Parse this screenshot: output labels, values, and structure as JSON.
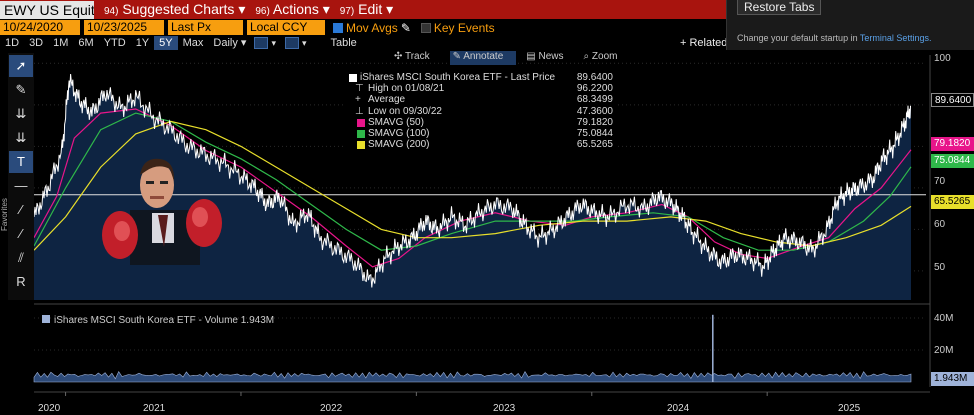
{
  "topbar": {
    "ticker": "EWY US Equity",
    "menus": [
      {
        "num": "94)",
        "label": "Suggested Charts",
        "arrow": "▾"
      },
      {
        "num": "96)",
        "label": "Actions",
        "arrow": "▾"
      },
      {
        "num": "97)",
        "label": "Edit",
        "arrow": "▾"
      }
    ]
  },
  "controls": {
    "start_date": "10/24/2020",
    "end_date": "10/23/2025",
    "field": "Last Px",
    "currency": "Local CCY",
    "mov_avgs": "Mov Avgs",
    "key_events": "Key Events"
  },
  "periods": [
    "1D",
    "3D",
    "1M",
    "6M",
    "YTD",
    "1Y",
    "5Y",
    "Max"
  ],
  "selected_period": "5Y",
  "frequency": "Daily",
  "table_label": "Table",
  "related_label": "+ Related",
  "subtoolbar": [
    "Track",
    "Annotate",
    "News",
    "Zoom"
  ],
  "panel": {
    "button": "Restore Tabs",
    "message": "Change your default startup in ",
    "link": "Terminal Settings."
  },
  "favorites_label": "Favorites",
  "legend": {
    "title": "iShares MSCI South Korea ETF - Last Price",
    "title_value": "89.6400",
    "rows": [
      {
        "name": "High on 01/08/21",
        "value": "96.2200",
        "color": "",
        "icon": "⊤"
      },
      {
        "name": "Average",
        "value": "68.3499",
        "color": "",
        "icon": "+"
      },
      {
        "name": "Low on 09/30/22",
        "value": "47.3600",
        "color": "",
        "icon": "⊥"
      },
      {
        "name": "SMAVG (50)",
        "value": "79.1820",
        "color": "#e8158a",
        "icon": ""
      },
      {
        "name": "SMAVG (100)",
        "value": "75.0844",
        "color": "#2fb84a",
        "icon": ""
      },
      {
        "name": "SMAVG (200)",
        "value": "65.5265",
        "color": "#e8df2b",
        "icon": ""
      }
    ]
  },
  "price_tags": [
    {
      "value": "89.6400",
      "bg": "#000000",
      "fg": "#ffffff",
      "y": 89.64
    },
    {
      "value": "79.1820",
      "bg": "#e8158a",
      "fg": "#ffffff",
      "y": 79.182
    },
    {
      "value": "75.0844",
      "bg": "#2fb84a",
      "fg": "#ffffff",
      "y": 75.0844
    },
    {
      "value": "65.5265",
      "bg": "#e8df2b",
      "fg": "#000000",
      "y": 65.5265
    }
  ],
  "volume": {
    "title": "iShares MSCI South Korea ETF - Volume 1.943M",
    "last": "1.943M",
    "last_value": 1.943
  },
  "chart_data": {
    "type": "line",
    "price_axis": {
      "ticks": [
        50,
        60,
        70,
        80,
        90,
        100
      ],
      "tick_labels": [
        "50",
        "60",
        "70",
        "",
        "",
        "100"
      ],
      "ylim": [
        43,
        102
      ],
      "reference_line": 68.35
    },
    "volume_axis": {
      "ticks": [
        20,
        40
      ],
      "tick_labels": [
        "20M",
        "40M"
      ],
      "ylim": [
        0,
        45
      ]
    },
    "x_labels": [
      "2020",
      "2021",
      "2022",
      "2023",
      "2024",
      "2025"
    ],
    "x_label_dates": [
      2020.98,
      2021.5,
      2022.5,
      2023.5,
      2024.5,
      2025.5
    ],
    "xlim": [
      2020.82,
      2025.82
    ],
    "series": [
      {
        "name": "Last Price",
        "color": "#ffffff",
        "area_fill": "#0e2442",
        "points": [
          [
            2020.82,
            63
          ],
          [
            2020.9,
            70
          ],
          [
            2020.98,
            79
          ],
          [
            2021.02,
            96
          ],
          [
            2021.08,
            91
          ],
          [
            2021.15,
            88
          ],
          [
            2021.23,
            93
          ],
          [
            2021.32,
            89
          ],
          [
            2021.4,
            92
          ],
          [
            2021.5,
            87
          ],
          [
            2021.6,
            84
          ],
          [
            2021.7,
            80
          ],
          [
            2021.8,
            78
          ],
          [
            2021.9,
            76
          ],
          [
            2022.0,
            73
          ],
          [
            2022.08,
            70
          ],
          [
            2022.15,
            66
          ],
          [
            2022.22,
            68
          ],
          [
            2022.3,
            61
          ],
          [
            2022.38,
            64
          ],
          [
            2022.45,
            58
          ],
          [
            2022.55,
            55
          ],
          [
            2022.65,
            52
          ],
          [
            2022.74,
            47.4
          ],
          [
            2022.82,
            53
          ],
          [
            2022.9,
            56
          ],
          [
            2022.98,
            58
          ],
          [
            2023.05,
            62
          ],
          [
            2023.12,
            60
          ],
          [
            2023.2,
            63
          ],
          [
            2023.28,
            61
          ],
          [
            2023.36,
            64
          ],
          [
            2023.45,
            66
          ],
          [
            2023.55,
            65
          ],
          [
            2023.62,
            61
          ],
          [
            2023.7,
            58
          ],
          [
            2023.78,
            60
          ],
          [
            2023.86,
            63
          ],
          [
            2023.94,
            66
          ],
          [
            2024.02,
            64
          ],
          [
            2024.1,
            63
          ],
          [
            2024.2,
            66
          ],
          [
            2024.3,
            65
          ],
          [
            2024.38,
            68
          ],
          [
            2024.46,
            66
          ],
          [
            2024.52,
            63
          ],
          [
            2024.58,
            59
          ],
          [
            2024.66,
            55
          ],
          [
            2024.74,
            52
          ],
          [
            2024.82,
            54
          ],
          [
            2024.9,
            53
          ],
          [
            2024.98,
            51
          ],
          [
            2025.04,
            55
          ],
          [
            2025.1,
            58
          ],
          [
            2025.18,
            57
          ],
          [
            2025.26,
            55
          ],
          [
            2025.34,
            60
          ],
          [
            2025.4,
            67
          ],
          [
            2025.46,
            69
          ],
          [
            2025.52,
            70
          ],
          [
            2025.6,
            72
          ],
          [
            2025.66,
            77
          ],
          [
            2025.72,
            80
          ],
          [
            2025.78,
            85
          ],
          [
            2025.82,
            89.64
          ]
        ]
      },
      {
        "name": "SMAVG (50)",
        "color": "#e8158a",
        "points": [
          [
            2020.82,
            58
          ],
          [
            2020.95,
            68
          ],
          [
            2021.05,
            82
          ],
          [
            2021.2,
            88
          ],
          [
            2021.4,
            89
          ],
          [
            2021.6,
            85
          ],
          [
            2021.8,
            79
          ],
          [
            2022.0,
            75
          ],
          [
            2022.2,
            69
          ],
          [
            2022.4,
            63
          ],
          [
            2022.6,
            56
          ],
          [
            2022.75,
            51
          ],
          [
            2022.9,
            53
          ],
          [
            2023.05,
            58
          ],
          [
            2023.25,
            62
          ],
          [
            2023.45,
            64
          ],
          [
            2023.65,
            62
          ],
          [
            2023.85,
            61
          ],
          [
            2024.0,
            63
          ],
          [
            2024.2,
            64
          ],
          [
            2024.4,
            66
          ],
          [
            2024.55,
            63
          ],
          [
            2024.7,
            57
          ],
          [
            2024.85,
            54
          ],
          [
            2025.0,
            53
          ],
          [
            2025.2,
            56
          ],
          [
            2025.35,
            58
          ],
          [
            2025.5,
            65
          ],
          [
            2025.65,
            70
          ],
          [
            2025.82,
            79.18
          ]
        ]
      },
      {
        "name": "SMAVG (100)",
        "color": "#2fb84a",
        "points": [
          [
            2020.82,
            56
          ],
          [
            2021.0,
            70
          ],
          [
            2021.2,
            84
          ],
          [
            2021.4,
            88
          ],
          [
            2021.6,
            86
          ],
          [
            2021.8,
            81
          ],
          [
            2022.0,
            77
          ],
          [
            2022.2,
            72
          ],
          [
            2022.4,
            66
          ],
          [
            2022.6,
            60
          ],
          [
            2022.8,
            55
          ],
          [
            2023.0,
            56
          ],
          [
            2023.2,
            59
          ],
          [
            2023.45,
            62
          ],
          [
            2023.7,
            62
          ],
          [
            2023.9,
            62
          ],
          [
            2024.1,
            63
          ],
          [
            2024.35,
            64
          ],
          [
            2024.55,
            63
          ],
          [
            2024.75,
            58
          ],
          [
            2024.95,
            55
          ],
          [
            2025.15,
            55
          ],
          [
            2025.35,
            57
          ],
          [
            2025.55,
            62
          ],
          [
            2025.7,
            68
          ],
          [
            2025.82,
            75.08
          ]
        ]
      },
      {
        "name": "SMAVG (200)",
        "color": "#e8df2b",
        "points": [
          [
            2020.82,
            55
          ],
          [
            2021.0,
            63
          ],
          [
            2021.2,
            75
          ],
          [
            2021.4,
            83
          ],
          [
            2021.6,
            86
          ],
          [
            2021.8,
            84
          ],
          [
            2022.0,
            80
          ],
          [
            2022.2,
            75
          ],
          [
            2022.4,
            70
          ],
          [
            2022.6,
            65
          ],
          [
            2022.8,
            60
          ],
          [
            2023.0,
            58
          ],
          [
            2023.2,
            58
          ],
          [
            2023.45,
            59
          ],
          [
            2023.7,
            61
          ],
          [
            2023.95,
            62
          ],
          [
            2024.2,
            62
          ],
          [
            2024.45,
            63
          ],
          [
            2024.65,
            62
          ],
          [
            2024.85,
            59
          ],
          [
            2025.05,
            57
          ],
          [
            2025.25,
            56
          ],
          [
            2025.45,
            58
          ],
          [
            2025.65,
            61
          ],
          [
            2025.82,
            65.53
          ]
        ]
      }
    ],
    "volume_series": {
      "name": "Volume",
      "color": "#9fb3d9",
      "spike": [
        2024.69,
        42
      ],
      "baseline_values": [
        3,
        4,
        2.5,
        3.5,
        2,
        4.5,
        3,
        2.2,
        3.8,
        2.6,
        3.1,
        4.2,
        2.8,
        3.3,
        2.1,
        3.9,
        2.7,
        3.6,
        2.4,
        4.1
      ]
    }
  }
}
